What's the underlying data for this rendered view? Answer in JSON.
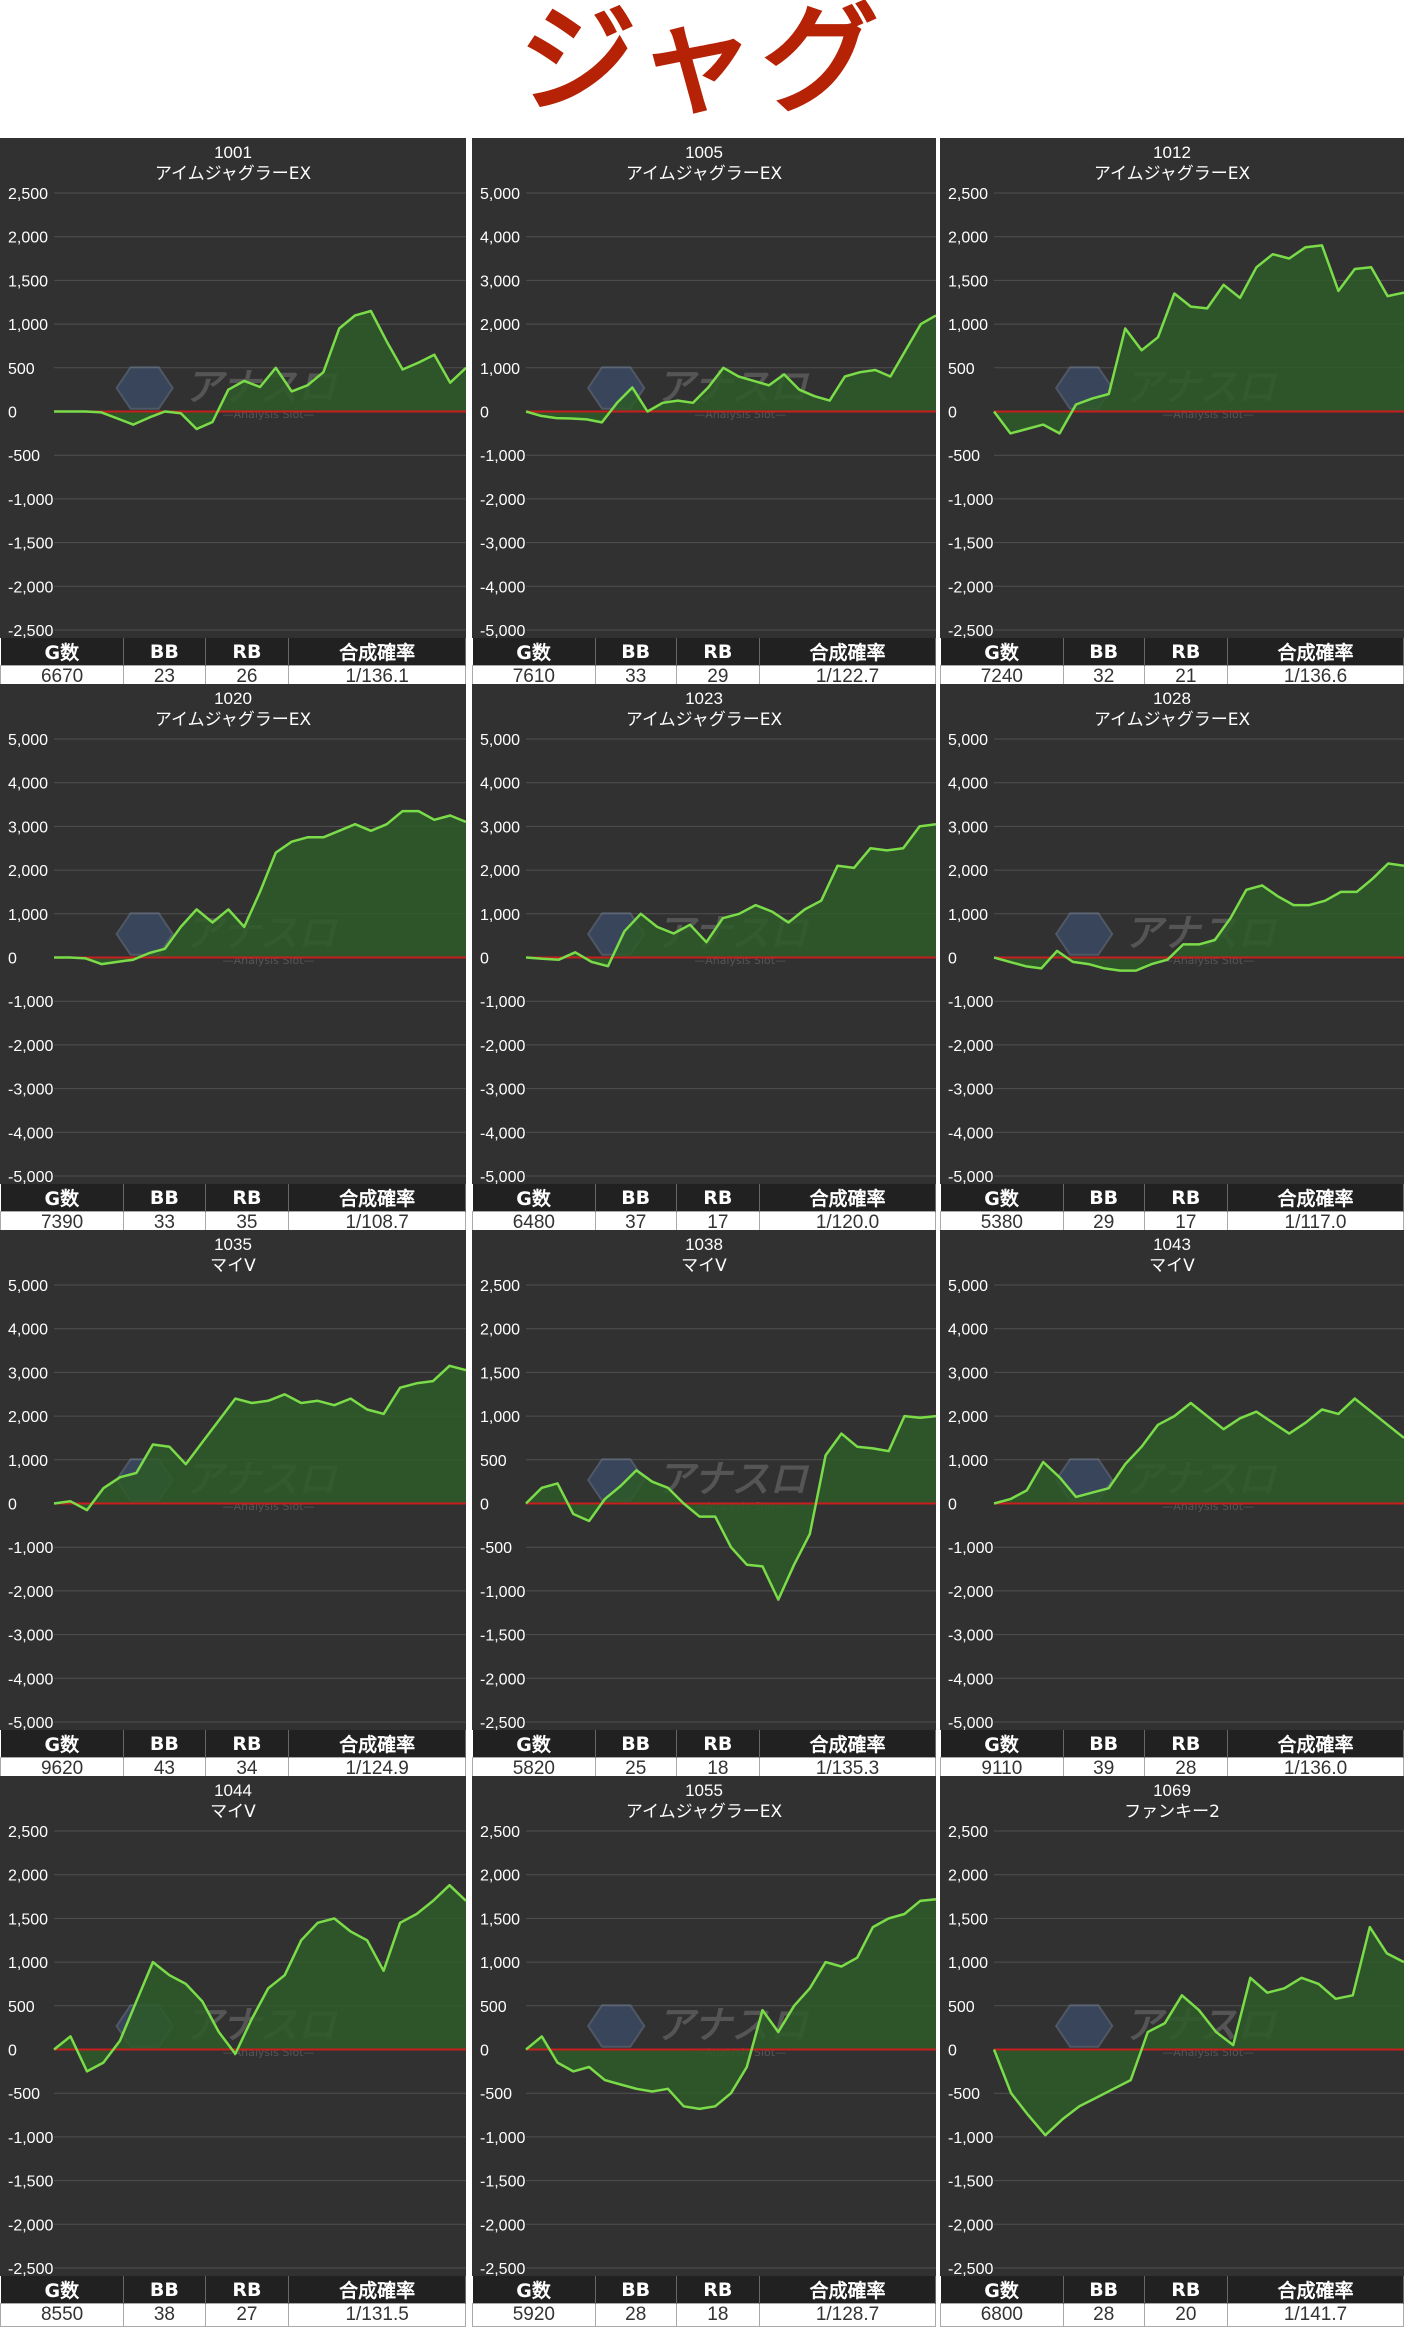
{
  "page_title": "ジャグ",
  "table_headers": [
    "G数",
    "BB",
    "RB",
    "合成確率"
  ],
  "colors": {
    "background": "#313131",
    "line": "#7bdc49",
    "fill": "#2e5a28",
    "zero_line": "#c81e1e",
    "title": "#b52206"
  },
  "watermark": {
    "icon": "hexagon-logo-icon",
    "text": "アナスロ",
    "subtext": "—Analysis Slot—"
  },
  "chart_data": [
    {
      "type": "area",
      "title": "1001",
      "subtitle": "アイムジャグラーEX",
      "ylim": [
        -2500,
        2500
      ],
      "yticks": [
        2500,
        2000,
        1500,
        1000,
        500,
        0,
        -500,
        -1000,
        -1500,
        -2000,
        -2500
      ],
      "tick_labels": [
        "2,500",
        "2,000",
        "1,500",
        "1,000",
        "500",
        "0",
        "-500",
        "-1,000",
        "-1,500",
        "-2,000",
        "-2,500"
      ],
      "values": [
        0,
        0,
        0,
        -10,
        -80,
        -150,
        -70,
        0,
        -20,
        -200,
        -120,
        250,
        350,
        280,
        500,
        230,
        300,
        450,
        950,
        1100,
        1150,
        800,
        480,
        560,
        650,
        330,
        500
      ],
      "stats": {
        "g": "6670",
        "bb": "23",
        "rb": "26",
        "prob": "1/136.1"
      }
    },
    {
      "type": "area",
      "title": "1005",
      "subtitle": "アイムジャグラーEX",
      "ylim": [
        -5000,
        5000
      ],
      "yticks": [
        5000,
        4000,
        3000,
        2000,
        1000,
        0,
        -1000,
        -2000,
        -3000,
        -4000,
        -5000
      ],
      "tick_labels": [
        "5,000",
        "4,000",
        "3,000",
        "2,000",
        "1,000",
        "0",
        "-1,000",
        "-2,000",
        "-3,000",
        "-4,000",
        "-5,000"
      ],
      "values": [
        0,
        -100,
        -150,
        -160,
        -180,
        -250,
        200,
        550,
        0,
        200,
        250,
        200,
        550,
        1000,
        800,
        700,
        600,
        850,
        500,
        350,
        250,
        800,
        900,
        950,
        800,
        1400,
        2000,
        2200
      ],
      "stats": {
        "g": "7610",
        "bb": "33",
        "rb": "29",
        "prob": "1/122.7"
      }
    },
    {
      "type": "area",
      "title": "1012",
      "subtitle": "アイムジャグラーEX",
      "ylim": [
        -2500,
        2500
      ],
      "yticks": [
        2500,
        2000,
        1500,
        1000,
        500,
        0,
        -500,
        -1000,
        -1500,
        -2000,
        -2500
      ],
      "tick_labels": [
        "2,500",
        "2,000",
        "1,500",
        "1,000",
        "500",
        "0",
        "-500",
        "-1,000",
        "-1,500",
        "-2,000",
        "-2,500"
      ],
      "values": [
        0,
        -250,
        -200,
        -150,
        -250,
        80,
        150,
        200,
        950,
        700,
        850,
        1350,
        1200,
        1180,
        1450,
        1300,
        1650,
        1800,
        1750,
        1880,
        1900,
        1380,
        1630,
        1650,
        1320,
        1360
      ],
      "stats": {
        "g": "7240",
        "bb": "32",
        "rb": "21",
        "prob": "1/136.6"
      }
    },
    {
      "type": "area",
      "title": "1020",
      "subtitle": "アイムジャグラーEX",
      "ylim": [
        -5000,
        5000
      ],
      "yticks": [
        5000,
        4000,
        3000,
        2000,
        1000,
        0,
        -1000,
        -2000,
        -3000,
        -4000,
        -5000
      ],
      "tick_labels": [
        "5,000",
        "4,000",
        "3,000",
        "2,000",
        "1,000",
        "0",
        "-1,000",
        "-2,000",
        "-3,000",
        "-4,000",
        "-5,000"
      ],
      "values": [
        0,
        0,
        -20,
        -150,
        -100,
        -50,
        100,
        200,
        700,
        1100,
        800,
        1100,
        700,
        1500,
        2400,
        2650,
        2750,
        2750,
        2900,
        3050,
        2900,
        3050,
        3350,
        3350,
        3150,
        3250,
        3100
      ],
      "stats": {
        "g": "7390",
        "bb": "33",
        "rb": "35",
        "prob": "1/108.7"
      }
    },
    {
      "type": "area",
      "title": "1023",
      "subtitle": "アイムジャグラーEX",
      "ylim": [
        -5000,
        5000
      ],
      "yticks": [
        5000,
        4000,
        3000,
        2000,
        1000,
        0,
        -1000,
        -2000,
        -3000,
        -4000,
        -5000
      ],
      "tick_labels": [
        "5,000",
        "4,000",
        "3,000",
        "2,000",
        "1,000",
        "0",
        "-1,000",
        "-2,000",
        "-3,000",
        "-4,000",
        "-5,000"
      ],
      "values": [
        0,
        -30,
        -50,
        120,
        -100,
        -200,
        600,
        1000,
        700,
        550,
        750,
        350,
        900,
        1000,
        1200,
        1050,
        800,
        1100,
        1300,
        2100,
        2050,
        2500,
        2450,
        2500,
        3000,
        3050
      ],
      "stats": {
        "g": "6480",
        "bb": "37",
        "rb": "17",
        "prob": "1/120.0"
      }
    },
    {
      "type": "area",
      "title": "1028",
      "subtitle": "アイムジャグラーEX",
      "ylim": [
        -5000,
        5000
      ],
      "yticks": [
        5000,
        4000,
        3000,
        2000,
        1000,
        0,
        -1000,
        -2000,
        -3000,
        -4000,
        -5000
      ],
      "tick_labels": [
        "5,000",
        "4,000",
        "3,000",
        "2,000",
        "1,000",
        "0",
        "-1,000",
        "-2,000",
        "-3,000",
        "-4,000",
        "-5,000"
      ],
      "values": [
        0,
        -100,
        -200,
        -250,
        150,
        -100,
        -150,
        -250,
        -300,
        -300,
        -150,
        -50,
        300,
        300,
        400,
        900,
        1550,
        1650,
        1400,
        1200,
        1200,
        1300,
        1500,
        1500,
        1800,
        2150,
        2100
      ],
      "stats": {
        "g": "5380",
        "bb": "29",
        "rb": "17",
        "prob": "1/117.0"
      }
    },
    {
      "type": "area",
      "title": "1035",
      "subtitle": "マイV",
      "ylim": [
        -5000,
        5000
      ],
      "yticks": [
        5000,
        4000,
        3000,
        2000,
        1000,
        0,
        -1000,
        -2000,
        -3000,
        -4000,
        -5000
      ],
      "tick_labels": [
        "5,000",
        "4,000",
        "3,000",
        "2,000",
        "1,000",
        "0",
        "-1,000",
        "-2,000",
        "-3,000",
        "-4,000",
        "-5,000"
      ],
      "values": [
        0,
        50,
        -150,
        350,
        600,
        700,
        1350,
        1300,
        900,
        1400,
        1900,
        2400,
        2300,
        2350,
        2500,
        2300,
        2350,
        2250,
        2400,
        2150,
        2050,
        2650,
        2750,
        2800,
        3150,
        3050
      ],
      "stats": {
        "g": "9620",
        "bb": "43",
        "rb": "34",
        "prob": "1/124.9"
      }
    },
    {
      "type": "area",
      "title": "1038",
      "subtitle": "マイV",
      "ylim": [
        -2500,
        2500
      ],
      "yticks": [
        2500,
        2000,
        1500,
        1000,
        500,
        0,
        -500,
        -1000,
        -1500,
        -2000,
        -2500
      ],
      "tick_labels": [
        "2,500",
        "2,000",
        "1,500",
        "1,000",
        "500",
        "0",
        "-500",
        "-1,000",
        "-1,500",
        "-2,000",
        "-2,500"
      ],
      "values": [
        0,
        180,
        230,
        -120,
        -200,
        50,
        200,
        380,
        250,
        180,
        0,
        -150,
        -150,
        -500,
        -700,
        -720,
        -1100,
        -700,
        -350,
        550,
        800,
        650,
        630,
        600,
        1000,
        980,
        1000
      ],
      "stats": {
        "g": "5820",
        "bb": "25",
        "rb": "18",
        "prob": "1/135.3"
      }
    },
    {
      "type": "area",
      "title": "1043",
      "subtitle": "マイV",
      "ylim": [
        -5000,
        5000
      ],
      "yticks": [
        5000,
        4000,
        3000,
        2000,
        1000,
        0,
        -1000,
        -2000,
        -3000,
        -4000,
        -5000
      ],
      "tick_labels": [
        "5,000",
        "4,000",
        "3,000",
        "2,000",
        "1,000",
        "0",
        "-1,000",
        "-2,000",
        "-3,000",
        "-4,000",
        "-5,000"
      ],
      "values": [
        0,
        100,
        300,
        950,
        600,
        150,
        250,
        350,
        900,
        1300,
        1800,
        2000,
        2300,
        2000,
        1700,
        1950,
        2100,
        1850,
        1600,
        1850,
        2150,
        2050,
        2400,
        2100,
        1800,
        1500
      ],
      "stats": {
        "g": "9110",
        "bb": "39",
        "rb": "28",
        "prob": "1/136.0"
      }
    },
    {
      "type": "area",
      "title": "1044",
      "subtitle": "マイV",
      "ylim": [
        -2500,
        2500
      ],
      "yticks": [
        2500,
        2000,
        1500,
        1000,
        500,
        0,
        -500,
        -1000,
        -1500,
        -2000,
        -2500
      ],
      "tick_labels": [
        "2,500",
        "2,000",
        "1,500",
        "1,000",
        "500",
        "0",
        "-500",
        "-1,000",
        "-1,500",
        "-2,000",
        "-2,500"
      ],
      "values": [
        0,
        150,
        -250,
        -150,
        100,
        550,
        1000,
        850,
        750,
        550,
        200,
        -50,
        350,
        700,
        850,
        1250,
        1450,
        1500,
        1350,
        1250,
        900,
        1450,
        1550,
        1700,
        1880,
        1700
      ],
      "stats": {
        "g": "8550",
        "bb": "38",
        "rb": "27",
        "prob": "1/131.5"
      }
    },
    {
      "type": "area",
      "title": "1055",
      "subtitle": "アイムジャグラーEX",
      "ylim": [
        -2500,
        2500
      ],
      "yticks": [
        2500,
        2000,
        1500,
        1000,
        500,
        0,
        -500,
        -1000,
        -1500,
        -2000,
        -2500
      ],
      "tick_labels": [
        "2,500",
        "2,000",
        "1,500",
        "1,000",
        "500",
        "0",
        "-500",
        "-1,000",
        "-1,500",
        "-2,000",
        "-2,500"
      ],
      "values": [
        0,
        150,
        -150,
        -250,
        -200,
        -350,
        -400,
        -450,
        -480,
        -450,
        -650,
        -680,
        -650,
        -500,
        -200,
        450,
        200,
        500,
        700,
        1000,
        950,
        1050,
        1400,
        1500,
        1550,
        1700,
        1720
      ],
      "stats": {
        "g": "5920",
        "bb": "28",
        "rb": "18",
        "prob": "1/128.7"
      }
    },
    {
      "type": "area",
      "title": "1069",
      "subtitle": "ファンキー2",
      "ylim": [
        -2500,
        2500
      ],
      "yticks": [
        2500,
        2000,
        1500,
        1000,
        500,
        0,
        -500,
        -1000,
        -1500,
        -2000,
        -2500
      ],
      "tick_labels": [
        "2,500",
        "2,000",
        "1,500",
        "1,000",
        "500",
        "0",
        "-500",
        "-1,000",
        "-1,500",
        "-2,000",
        "-2,500"
      ],
      "values": [
        0,
        -500,
        -750,
        -980,
        -800,
        -650,
        -550,
        -450,
        -350,
        200,
        300,
        620,
        450,
        200,
        50,
        820,
        650,
        700,
        820,
        750,
        580,
        620,
        1400,
        1100,
        1000
      ],
      "stats": {
        "g": "6800",
        "bb": "28",
        "rb": "20",
        "prob": "1/141.7"
      }
    }
  ]
}
